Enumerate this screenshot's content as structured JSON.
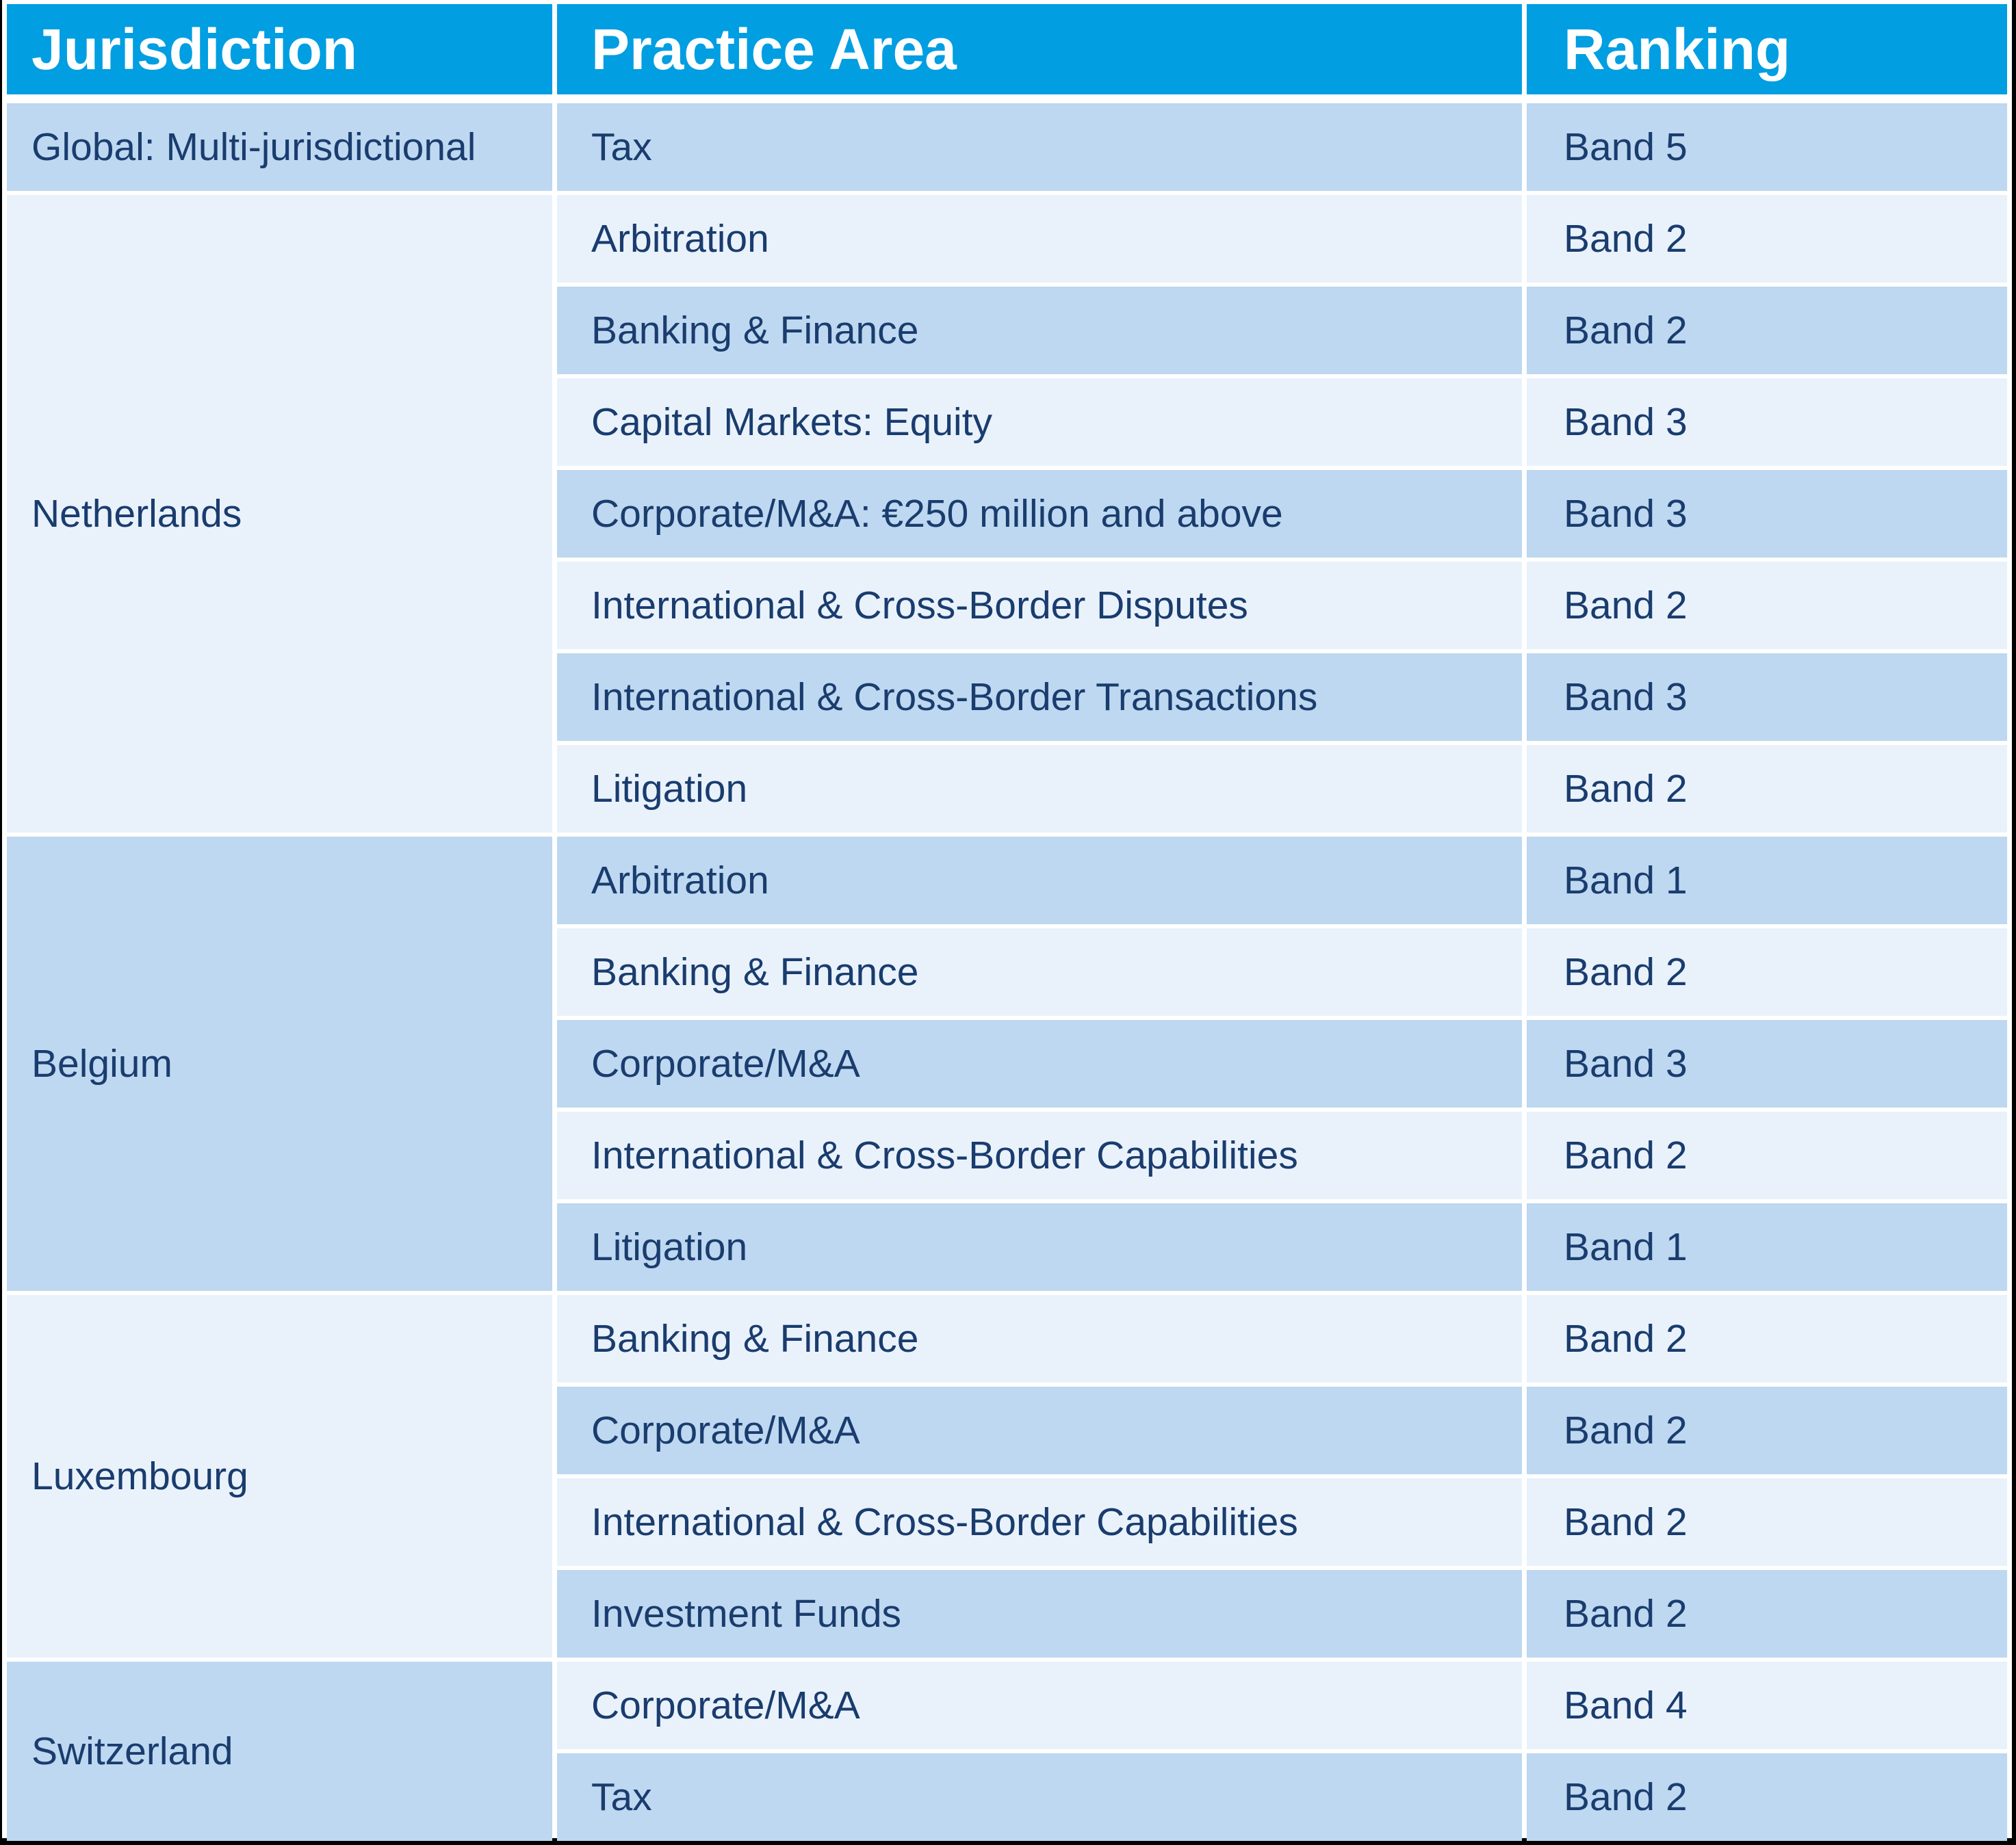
{
  "table": {
    "headers": {
      "jurisdiction": "Jurisdiction",
      "practice_area": "Practice Area",
      "ranking": "Ranking"
    },
    "sections": [
      {
        "jurisdiction": "Global: Multi-jurisdictional",
        "rows": [
          {
            "practice_area": "Tax",
            "ranking": "Band 5"
          }
        ]
      },
      {
        "jurisdiction": "Netherlands",
        "rows": [
          {
            "practice_area": "Arbitration",
            "ranking": "Band 2"
          },
          {
            "practice_area": "Banking & Finance",
            "ranking": "Band 2"
          },
          {
            "practice_area": "Capital Markets: Equity",
            "ranking": "Band 3"
          },
          {
            "practice_area": "Corporate/M&A: €250 million and above",
            "ranking": "Band 3"
          },
          {
            "practice_area": "International & Cross-Border Disputes",
            "ranking": "Band 2"
          },
          {
            "practice_area": "International & Cross-Border Transactions",
            "ranking": "Band 3"
          },
          {
            "practice_area": "Litigation",
            "ranking": "Band 2"
          }
        ]
      },
      {
        "jurisdiction": "Belgium",
        "rows": [
          {
            "practice_area": "Arbitration",
            "ranking": "Band 1"
          },
          {
            "practice_area": "Banking & Finance",
            "ranking": "Band 2"
          },
          {
            "practice_area": "Corporate/M&A",
            "ranking": "Band 3"
          },
          {
            "practice_area": "International & Cross-Border Capabilities",
            "ranking": "Band 2"
          },
          {
            "practice_area": "Litigation",
            "ranking": "Band 1"
          }
        ]
      },
      {
        "jurisdiction": "Luxembourg",
        "rows": [
          {
            "practice_area": "Banking & Finance",
            "ranking": "Band 2"
          },
          {
            "practice_area": "Corporate/M&A",
            "ranking": "Band 2"
          },
          {
            "practice_area": "International & Cross-Border Capabilities",
            "ranking": "Band 2"
          },
          {
            "practice_area": "Investment Funds",
            "ranking": "Band 2"
          }
        ]
      },
      {
        "jurisdiction": "Switzerland",
        "rows": [
          {
            "practice_area": "Corporate/M&A",
            "ranking": "Band 4"
          },
          {
            "practice_area": "Tax",
            "ranking": "Band 2"
          }
        ]
      }
    ],
    "colors": {
      "header_background": "#019EE2",
      "header_text": "#FFFFFF",
      "row_medium_blue": "#BDD8F0",
      "row_light_blue": "#E9F2FB",
      "cell_text": "#1A3C6E",
      "frame": "#000000",
      "gridline": "#FFFFFF"
    }
  }
}
